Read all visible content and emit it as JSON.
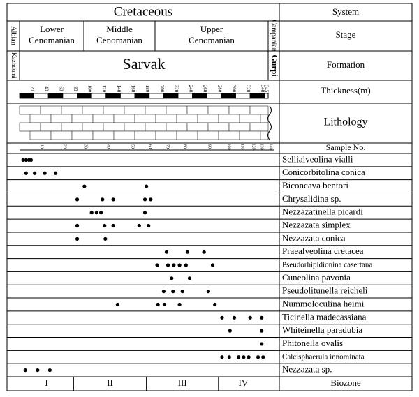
{
  "header": {
    "system": "Cretaceous",
    "system_label": "System",
    "stage_label": "Stage",
    "formation_label": "Formation",
    "thickness_label": "Thickness(m)",
    "lithology_label": "Lithology",
    "sample_label": "Sample No.",
    "biozone_label": "Biozone"
  },
  "stages": [
    "Albian",
    "Lower Cenomanian",
    "Middle Cenomanian",
    "Upper Cenomanian",
    "Campanian"
  ],
  "formations": [
    "Kazhdumi",
    "Sarvak",
    "Gurpi"
  ],
  "thickness": {
    "xlim": [
      0,
      345
    ],
    "ticks": [
      20,
      40,
      60,
      80,
      100,
      120,
      140,
      160,
      180,
      200,
      220,
      240,
      260,
      280,
      300,
      320,
      340,
      345
    ]
  },
  "sample_numbers": [
    10,
    20,
    30,
    40,
    50,
    60,
    70,
    80,
    90,
    100,
    110,
    120,
    130,
    140
  ],
  "species": [
    {
      "name": "Sellialveolina vialli",
      "occurrences": [
        5,
        9,
        13,
        16
      ]
    },
    {
      "name": "Conicorbitolina conica",
      "occurrences": [
        9,
        21,
        35,
        50
      ]
    },
    {
      "name": "Biconcava bentori",
      "occurrences": [
        90,
        176
      ]
    },
    {
      "name": "Chrysalidina sp.",
      "occurrences": [
        80,
        115,
        130,
        174,
        182
      ]
    },
    {
      "name": "Nezzazatinella picardi",
      "occurrences": [
        100,
        107,
        113,
        174
      ]
    },
    {
      "name": "Nezzazata simplex",
      "occurrences": [
        80,
        118,
        130,
        166,
        179
      ]
    },
    {
      "name": "Nezzazata conica",
      "occurrences": [
        80,
        119
      ]
    },
    {
      "name": "Praealveolina cretacea",
      "occurrences": [
        204,
        233,
        256
      ]
    },
    {
      "name": "Pseudorhipidionina casertana",
      "occurrences": [
        191,
        206,
        214,
        222,
        231,
        268
      ]
    },
    {
      "name": "Cuneolina pavonia",
      "occurrences": [
        211,
        236
      ]
    },
    {
      "name": "Pseudolitunella reicheli",
      "occurrences": [
        200,
        213,
        226,
        262
      ]
    },
    {
      "name": "Nummoloculina heimi",
      "occurrences": [
        136,
        192,
        201,
        222,
        271
      ]
    },
    {
      "name": "Ticinella madecassiana",
      "occurrences": [
        281,
        298,
        320,
        336
      ]
    },
    {
      "name": "Whiteinella paradubia",
      "occurrences": [
        292,
        336
      ]
    },
    {
      "name": "Phitonella ovalis",
      "occurrences": [
        336
      ]
    },
    {
      "name": "Calcisphaerula innominata",
      "occurrences": [
        281,
        291,
        304,
        311,
        318,
        331,
        338
      ]
    },
    {
      "name": "Nezzazata sp.",
      "occurrences": [
        8,
        25,
        42
      ]
    }
  ],
  "biozones": [
    {
      "label": "I",
      "from": 0,
      "to": 75
    },
    {
      "label": "II",
      "from": 75,
      "to": 176
    },
    {
      "label": "III",
      "from": 176,
      "to": 276
    },
    {
      "label": "IV",
      "from": 276,
      "to": 345
    }
  ]
}
